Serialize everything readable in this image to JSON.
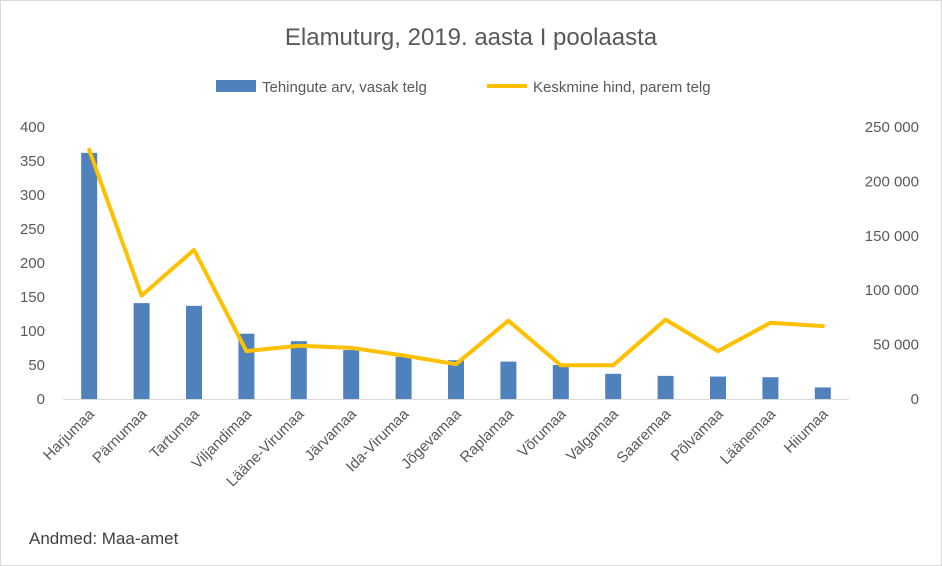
{
  "chart_data": {
    "type": "bar",
    "title": "Elamuturg, 2019. aasta I poolaasta",
    "source": "Andmed: Maa-amet",
    "categories": [
      "Harjumaa",
      "Pärnumaa",
      "Tartumaa",
      "Viljandimaa",
      "Lääne-Virumaa",
      "Järvamaa",
      "Ida-Virumaa",
      "Jõgevamaa",
      "Raplamaa",
      "Võrumaa",
      "Valgamaa",
      "Saaremaa",
      "Põlvamaa",
      "Läänemaa",
      "Hiiumaa"
    ],
    "series": [
      {
        "name": "Tehingute arv, vasak telg",
        "type": "bar",
        "axis": "left",
        "color": "#4f81bd",
        "values": [
          362,
          141,
          137,
          96,
          85,
          72,
          62,
          57,
          55,
          50,
          37,
          34,
          33,
          32,
          17
        ]
      },
      {
        "name": "Keskmine hind, parem telg",
        "type": "line",
        "axis": "right",
        "color": "#ffc000",
        "values": [
          229000,
          95000,
          137000,
          44000,
          49000,
          47000,
          40000,
          32000,
          72000,
          31000,
          31000,
          73000,
          44000,
          70000,
          67000
        ]
      }
    ],
    "y_left": {
      "range": [
        0,
        400
      ],
      "ticks": [
        "0",
        "50",
        "100",
        "150",
        "200",
        "250",
        "300",
        "350",
        "400"
      ]
    },
    "y_right": {
      "range": [
        0,
        250000
      ],
      "ticks": [
        "0",
        "50 000",
        "100 000",
        "150 000",
        "200 000",
        "250 000"
      ]
    },
    "legend_position": "top",
    "grid": false
  }
}
